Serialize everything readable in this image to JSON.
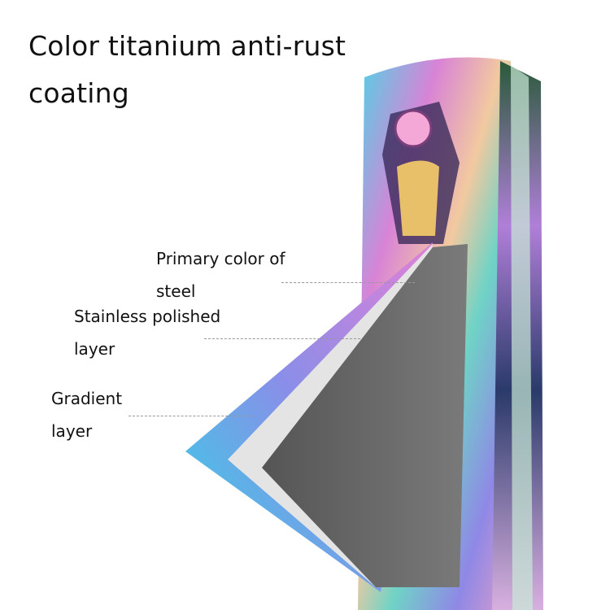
{
  "heading": "Color titanium anti-rust coating",
  "labels": {
    "primary": [
      "Primary color of",
      "steel"
    ],
    "polished": [
      "Stainless polished",
      "layer"
    ],
    "gradient": [
      "Gradient",
      "layer"
    ]
  },
  "colors": {
    "steel": "#5f5f5f",
    "polished": "#e4e4e4",
    "gradient_start": "#2fd6e6",
    "gradient_mid": "#8a8ee8",
    "gradient_end": "#e080d8"
  }
}
